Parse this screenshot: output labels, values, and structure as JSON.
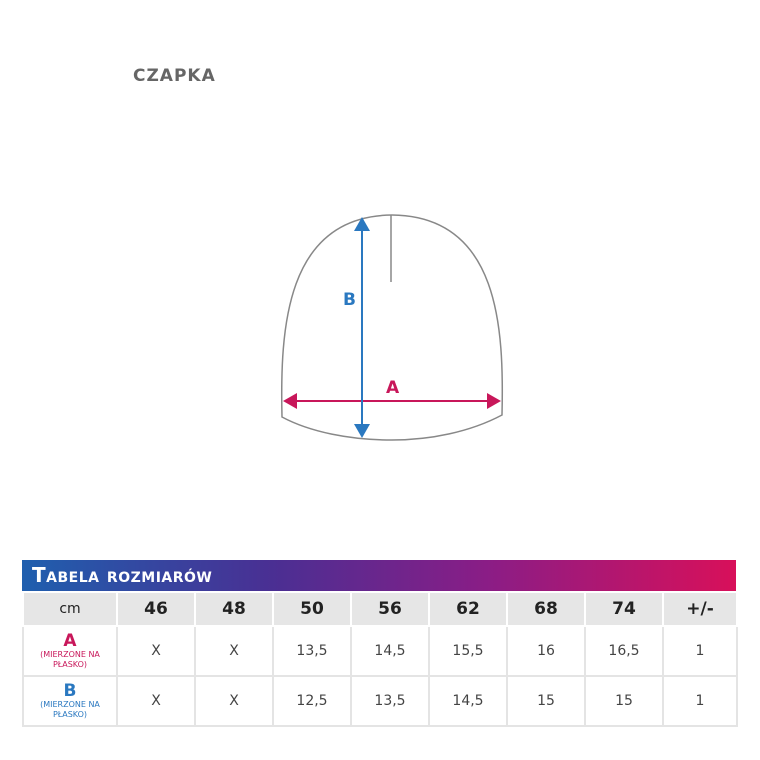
{
  "title": "CZAPKA",
  "diagram": {
    "label_a": "A",
    "label_b": "B",
    "color_a": "#c8175a",
    "color_b": "#2a78c0"
  },
  "table": {
    "heading": "Tabela rozmiarów",
    "header": [
      "cm",
      "46",
      "48",
      "50",
      "56",
      "62",
      "68",
      "74",
      "+/-"
    ],
    "rows": [
      {
        "label": "A",
        "note": "(MIERZONE NA PŁASKO)",
        "values": [
          "X",
          "X",
          "13,5",
          "14,5",
          "15,5",
          "16",
          "16,5",
          "1"
        ]
      },
      {
        "label": "B",
        "note": "(MIERZONE NA PŁASKO)",
        "values": [
          "X",
          "X",
          "12,5",
          "13,5",
          "14,5",
          "15",
          "15",
          "1"
        ]
      }
    ]
  }
}
